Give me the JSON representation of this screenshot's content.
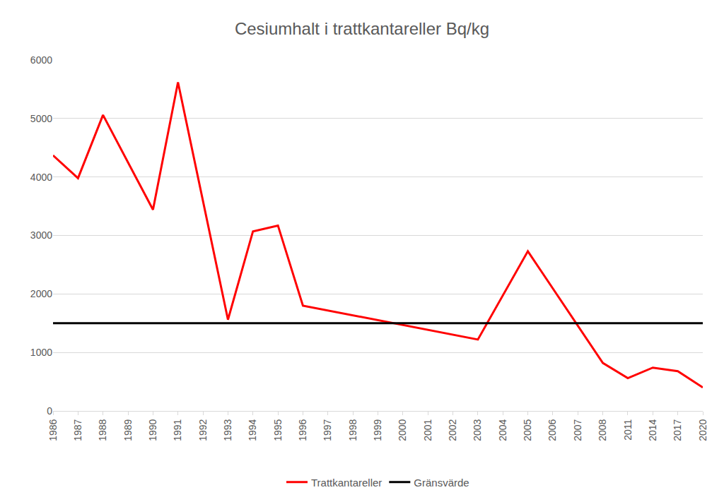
{
  "chart_data": {
    "type": "line",
    "title": "Cesiumhalt i trattkantareller Bq/kg",
    "categories": [
      "1986",
      "1987",
      "1988",
      "1989",
      "1990",
      "1991",
      "1992",
      "1993",
      "1994",
      "1995",
      "1996",
      "1997",
      "1998",
      "1999",
      "2000",
      "2001",
      "2002",
      "2003",
      "2004",
      "2005",
      "2006",
      "2007",
      "2008",
      "2011",
      "2014",
      "2017",
      "2020"
    ],
    "series": [
      {
        "name": "Trattkantareller",
        "color": "#ff0000",
        "values": [
          4370,
          3980,
          5060,
          null,
          3440,
          5620,
          null,
          1560,
          3070,
          3170,
          1800,
          null,
          null,
          null,
          null,
          null,
          null,
          1220,
          null,
          2730,
          null,
          null,
          820,
          560,
          740,
          680,
          400
        ]
      },
      {
        "name": "Gränsvärde",
        "color": "#000000",
        "values": [
          1500,
          1500,
          1500,
          1500,
          1500,
          1500,
          1500,
          1500,
          1500,
          1500,
          1500,
          1500,
          1500,
          1500,
          1500,
          1500,
          1500,
          1500,
          1500,
          1500,
          1500,
          1500,
          1500,
          1500,
          1500,
          1500,
          1500
        ]
      }
    ],
    "ylim": [
      0,
      6000
    ],
    "yticks": [
      0,
      1000,
      2000,
      3000,
      4000,
      5000,
      6000
    ],
    "grid": true,
    "legend": "bottom"
  }
}
